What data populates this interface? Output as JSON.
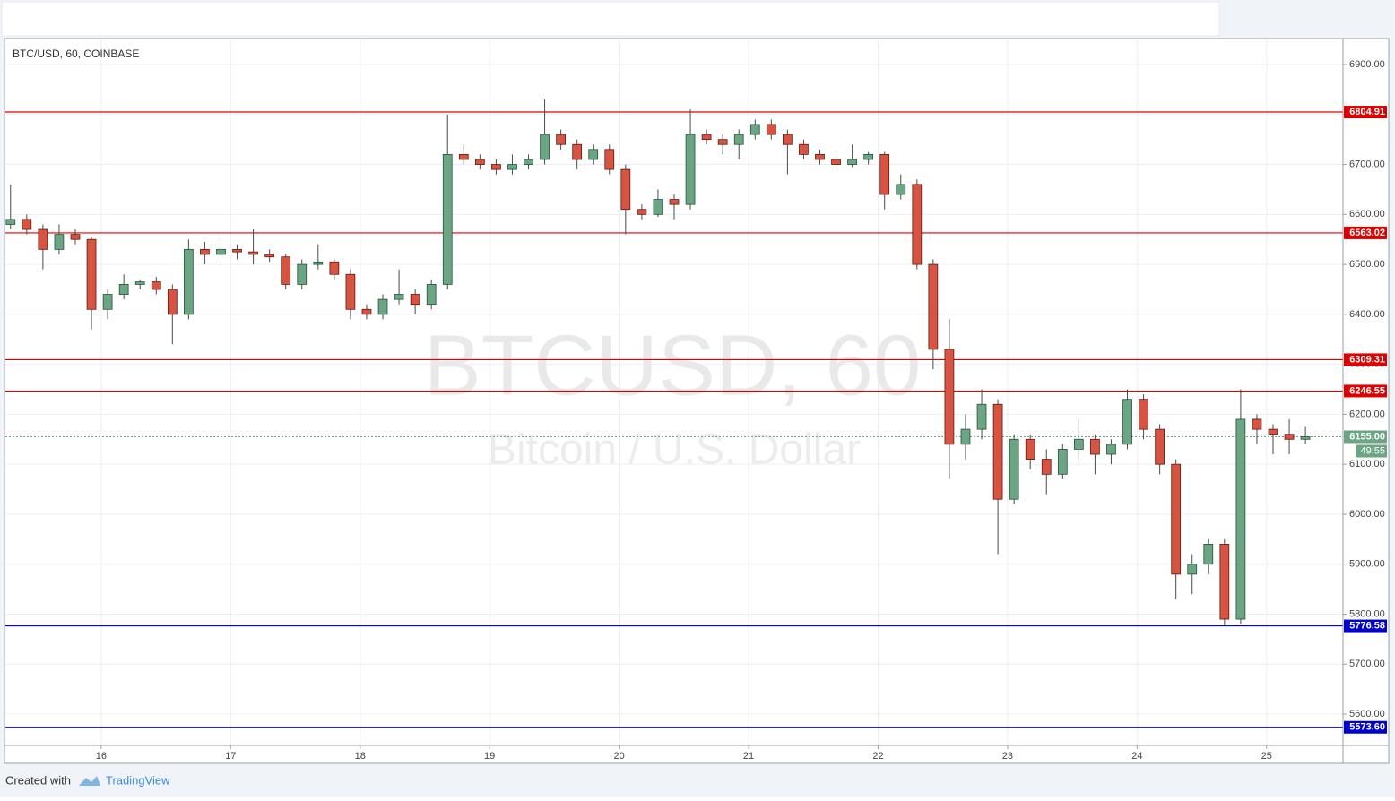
{
  "chart_data": {
    "type": "candlestick",
    "title": "BTC/USD, 60, COINBASE",
    "watermark": "BTCUSD, 60",
    "watermark_sub": "Bitcoin / U.S. Dollar",
    "countdown": "49:55",
    "footer_text": "Created with",
    "footer_brand": "TradingView",
    "colors": {
      "up": "#6ba583",
      "up_edge": "#225437",
      "down": "#d75442",
      "down_edge": "#5b1a13",
      "wick": "#4a4a4a"
    },
    "grid": true,
    "xlim": [
      15.26,
      25.59
    ],
    "xticks": [
      16,
      17,
      18,
      19,
      20,
      21,
      22,
      23,
      24,
      25
    ],
    "ylim": [
      5537.3,
      6950.2
    ],
    "yticks": [
      {
        "value": 5600,
        "label": "5600.00"
      },
      {
        "value": 5700,
        "label": "5700.00"
      },
      {
        "value": 5800,
        "label": "5800.00"
      },
      {
        "value": 5900,
        "label": "5900.00"
      },
      {
        "value": 6000,
        "label": "6000.00"
      },
      {
        "value": 6100,
        "label": "6100.00"
      },
      {
        "value": 6200,
        "label": "6200.00"
      },
      {
        "value": 6300,
        "label": "6300.00"
      },
      {
        "value": 6400,
        "label": "6400.00"
      },
      {
        "value": 6500,
        "label": "6500.00"
      },
      {
        "value": 6600,
        "label": "6600.00"
      },
      {
        "value": 6700,
        "label": "6700.00"
      },
      {
        "value": 6800,
        "label": "6800.00"
      },
      {
        "value": 6900,
        "label": "6900.00"
      }
    ],
    "levels": [
      {
        "value": 6804.91,
        "color": "#e00000"
      },
      {
        "value": 6563.02,
        "color": "#e00000"
      },
      {
        "value": 6309.31,
        "color": "#e00000"
      },
      {
        "value": 6246.55,
        "color": "#e00000"
      },
      {
        "value": 5776.58,
        "color": "#0000d0"
      },
      {
        "value": 5573.6,
        "label": "5573.60",
        "color": "#0000d0"
      }
    ],
    "last_price": {
      "value": 6155,
      "label": "6155.00",
      "color": "#6ba583"
    },
    "x": [
      15.3,
      15.425,
      15.55,
      15.675,
      15.8,
      15.925,
      16.05,
      16.175,
      16.3,
      16.425,
      16.55,
      16.675,
      16.8,
      16.925,
      17.05,
      17.175,
      17.3,
      17.425,
      17.55,
      17.675,
      17.8,
      17.925,
      18.05,
      18.175,
      18.3,
      18.425,
      18.55,
      18.675,
      18.8,
      18.925,
      19.05,
      19.175,
      19.3,
      19.425,
      19.55,
      19.675,
      19.8,
      19.925,
      20.05,
      20.175,
      20.3,
      20.425,
      20.55,
      20.675,
      20.8,
      20.925,
      21.05,
      21.175,
      21.3,
      21.425,
      21.55,
      21.675,
      21.8,
      21.925,
      22.05,
      22.175,
      22.3,
      22.425,
      22.55,
      22.675,
      22.8,
      22.925,
      23.05,
      23.175,
      23.3,
      23.425,
      23.55,
      23.675,
      23.8,
      23.925,
      24.05,
      24.175,
      24.3,
      24.425,
      24.55,
      24.675,
      24.8,
      24.925,
      25.05,
      25.175,
      25.3
    ],
    "open": [
      6580,
      6590,
      6570,
      6530,
      6560,
      6550,
      6410,
      6440,
      6460,
      6465,
      6450,
      6400,
      6530,
      6520,
      6530,
      6525,
      6520,
      6515,
      6460,
      6500,
      6505,
      6480,
      6410,
      6400,
      6430,
      6440,
      6420,
      6460,
      6720,
      6710,
      6700,
      6690,
      6700,
      6710,
      6760,
      6740,
      6710,
      6730,
      6690,
      6610,
      6600,
      6630,
      6620,
      6760,
      6750,
      6740,
      6760,
      6780,
      6760,
      6740,
      6720,
      6710,
      6700,
      6710,
      6720,
      6640,
      6660,
      6500,
      6330,
      6140,
      6170,
      6220,
      6030,
      6150,
      6110,
      6080,
      6130,
      6150,
      6120,
      6140,
      6230,
      6170,
      6100,
      5880,
      5900,
      5940,
      5790,
      6190,
      6170,
      6160,
      6150
    ],
    "high": [
      6660,
      6600,
      6580,
      6580,
      6570,
      6555,
      6450,
      6480,
      6470,
      6475,
      6460,
      6550,
      6545,
      6550,
      6540,
      6570,
      6530,
      6520,
      6510,
      6540,
      6510,
      6490,
      6420,
      6440,
      6490,
      6450,
      6470,
      6800,
      6740,
      6720,
      6710,
      6720,
      6720,
      6830,
      6770,
      6750,
      6740,
      6740,
      6700,
      6620,
      6650,
      6640,
      6810,
      6770,
      6760,
      6770,
      6790,
      6790,
      6770,
      6750,
      6730,
      6720,
      6740,
      6725,
      6725,
      6680,
      6670,
      6510,
      6390,
      6200,
      6250,
      6230,
      6160,
      6160,
      6130,
      6140,
      6190,
      6160,
      6150,
      6250,
      6240,
      6180,
      6110,
      5920,
      5950,
      5950,
      6250,
      6200,
      6180,
      6190,
      6175
    ],
    "low": [
      6570,
      6560,
      6490,
      6520,
      6540,
      6370,
      6390,
      6430,
      6450,
      6440,
      6340,
      6390,
      6500,
      6510,
      6510,
      6500,
      6505,
      6450,
      6450,
      6490,
      6470,
      6390,
      6390,
      6390,
      6420,
      6400,
      6410,
      6450,
      6700,
      6690,
      6680,
      6680,
      6690,
      6700,
      6730,
      6690,
      6700,
      6680,
      6560,
      6590,
      6595,
      6590,
      6610,
      6740,
      6720,
      6710,
      6750,
      6750,
      6680,
      6710,
      6700,
      6690,
      6695,
      6700,
      6610,
      6630,
      6490,
      6290,
      6070,
      6110,
      6150,
      5920,
      6020,
      6090,
      6040,
      6070,
      6110,
      6080,
      6100,
      6130,
      6150,
      6080,
      5830,
      5840,
      5880,
      5776.58,
      5780,
      6140,
      6120,
      6120,
      6140
    ],
    "close": [
      6590,
      6570,
      6530,
      6560,
      6550,
      6410,
      6440,
      6460,
      6465,
      6450,
      6400,
      6530,
      6520,
      6530,
      6525,
      6520,
      6515,
      6460,
      6500,
      6505,
      6480,
      6410,
      6400,
      6430,
      6440,
      6420,
      6460,
      6720,
      6710,
      6700,
      6690,
      6700,
      6710,
      6760,
      6740,
      6710,
      6730,
      6690,
      6610,
      6600,
      6630,
      6620,
      6760,
      6750,
      6740,
      6760,
      6780,
      6760,
      6740,
      6720,
      6710,
      6700,
      6710,
      6720,
      6640,
      6660,
      6500,
      6330,
      6140,
      6170,
      6220,
      6030,
      6150,
      6110,
      6080,
      6130,
      6150,
      6120,
      6140,
      6230,
      6170,
      6100,
      5880,
      5900,
      5940,
      5790,
      6190,
      6170,
      6160,
      6150,
      6155
    ]
  }
}
